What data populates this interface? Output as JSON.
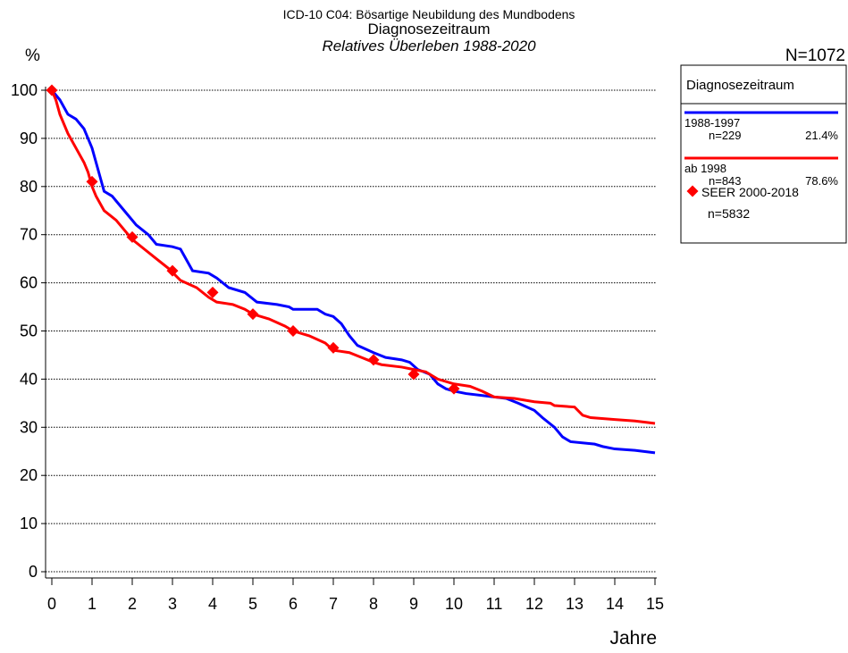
{
  "chart_data": {
    "type": "line",
    "title": "ICD-10 C04: Bösartige Neubildung des Mundbodens",
    "subtitle": "Diagnosezeitraum",
    "subtitle2": "Relatives Überleben 1988-2020",
    "y_label": "%",
    "x_label": "Jahre",
    "total": "N=1072",
    "legend_title": "Diagnosezeitraum",
    "xlim": [
      0,
      15
    ],
    "xticks": [
      0,
      1,
      2,
      3,
      4,
      5,
      6,
      7,
      8,
      9,
      10,
      11,
      12,
      13,
      14,
      15
    ],
    "ylim": [
      0,
      100
    ],
    "yticks": [
      0,
      10,
      20,
      30,
      40,
      50,
      60,
      70,
      80,
      90,
      100
    ],
    "grid": true,
    "series": [
      {
        "name": "1988-1997",
        "n": "n=229",
        "share": "21.4%",
        "color": "#0000ff",
        "x": [
          0,
          0.2,
          0.4,
          0.6,
          0.8,
          0.9,
          1.0,
          1.1,
          1.2,
          1.3,
          1.5,
          1.7,
          1.9,
          2.1,
          2.4,
          2.6,
          3.0,
          3.2,
          3.5,
          3.9,
          4.1,
          4.4,
          4.8,
          5.1,
          5.6,
          5.9,
          6.0,
          6.6,
          6.8,
          7.0,
          7.2,
          7.4,
          7.6,
          8.0,
          8.3,
          8.7,
          8.9,
          9.1,
          9.4,
          9.6,
          9.8,
          10.0,
          10.3,
          10.8,
          11.0,
          11.3,
          11.6,
          12.0,
          12.2,
          12.5,
          12.7,
          12.9,
          13.5,
          13.7,
          14.0,
          14.5,
          15.0
        ],
        "values": [
          100,
          98,
          95,
          94,
          92,
          90,
          88,
          85,
          82,
          79,
          78,
          76,
          74,
          72,
          70,
          68,
          67.5,
          67,
          62.5,
          62,
          61,
          59,
          58,
          56,
          55.5,
          55,
          54.5,
          54.5,
          53.5,
          53,
          51.5,
          49,
          47,
          45.5,
          44.5,
          44,
          43.5,
          42,
          41,
          39,
          38,
          37.5,
          37,
          36.5,
          36.3,
          36,
          35,
          33.5,
          32,
          30,
          28,
          27,
          26.5,
          26,
          25.5,
          25.2,
          24.7
        ]
      },
      {
        "name": "ab 1998",
        "n": "n=843",
        "share": "78.6%",
        "color": "#ff0000",
        "x": [
          0,
          0.1,
          0.2,
          0.4,
          0.6,
          0.8,
          0.9,
          1.0,
          1.1,
          1.3,
          1.6,
          1.8,
          2.0,
          2.3,
          2.6,
          2.9,
          3.2,
          3.6,
          3.9,
          4.1,
          4.5,
          4.8,
          5.0,
          5.4,
          5.8,
          6.0,
          6.4,
          6.8,
          7.0,
          7.4,
          7.7,
          8.0,
          8.2,
          8.7,
          9.0,
          9.3,
          9.6,
          10.0,
          10.4,
          10.7,
          11.0,
          11.5,
          12.0,
          12.4,
          12.5,
          13.0,
          13.2,
          13.4,
          14.0,
          14.5,
          14.8,
          15.0
        ],
        "values": [
          100,
          98,
          95,
          91,
          88,
          85,
          83,
          80,
          78,
          75,
          73,
          71,
          69,
          67,
          65,
          63,
          60.5,
          59,
          57,
          56,
          55.5,
          54.5,
          53.5,
          52.5,
          51,
          50,
          49,
          47.5,
          46,
          45.5,
          44.5,
          43.5,
          43,
          42.5,
          42,
          41.5,
          40,
          39,
          38.5,
          37.5,
          36.3,
          36,
          35.3,
          35,
          34.5,
          34.2,
          32.5,
          32,
          31.6,
          31.3,
          31,
          30.8
        ]
      },
      {
        "name": "SEER 2000-2018",
        "n": "n=5832",
        "color": "#ff0000",
        "marker": "diamond",
        "x": [
          0,
          1,
          2,
          3,
          4,
          5,
          6,
          7,
          8,
          9,
          10
        ],
        "values": [
          100,
          81,
          69.5,
          62.5,
          58,
          53.5,
          50,
          46.5,
          44,
          41,
          38
        ]
      }
    ]
  }
}
